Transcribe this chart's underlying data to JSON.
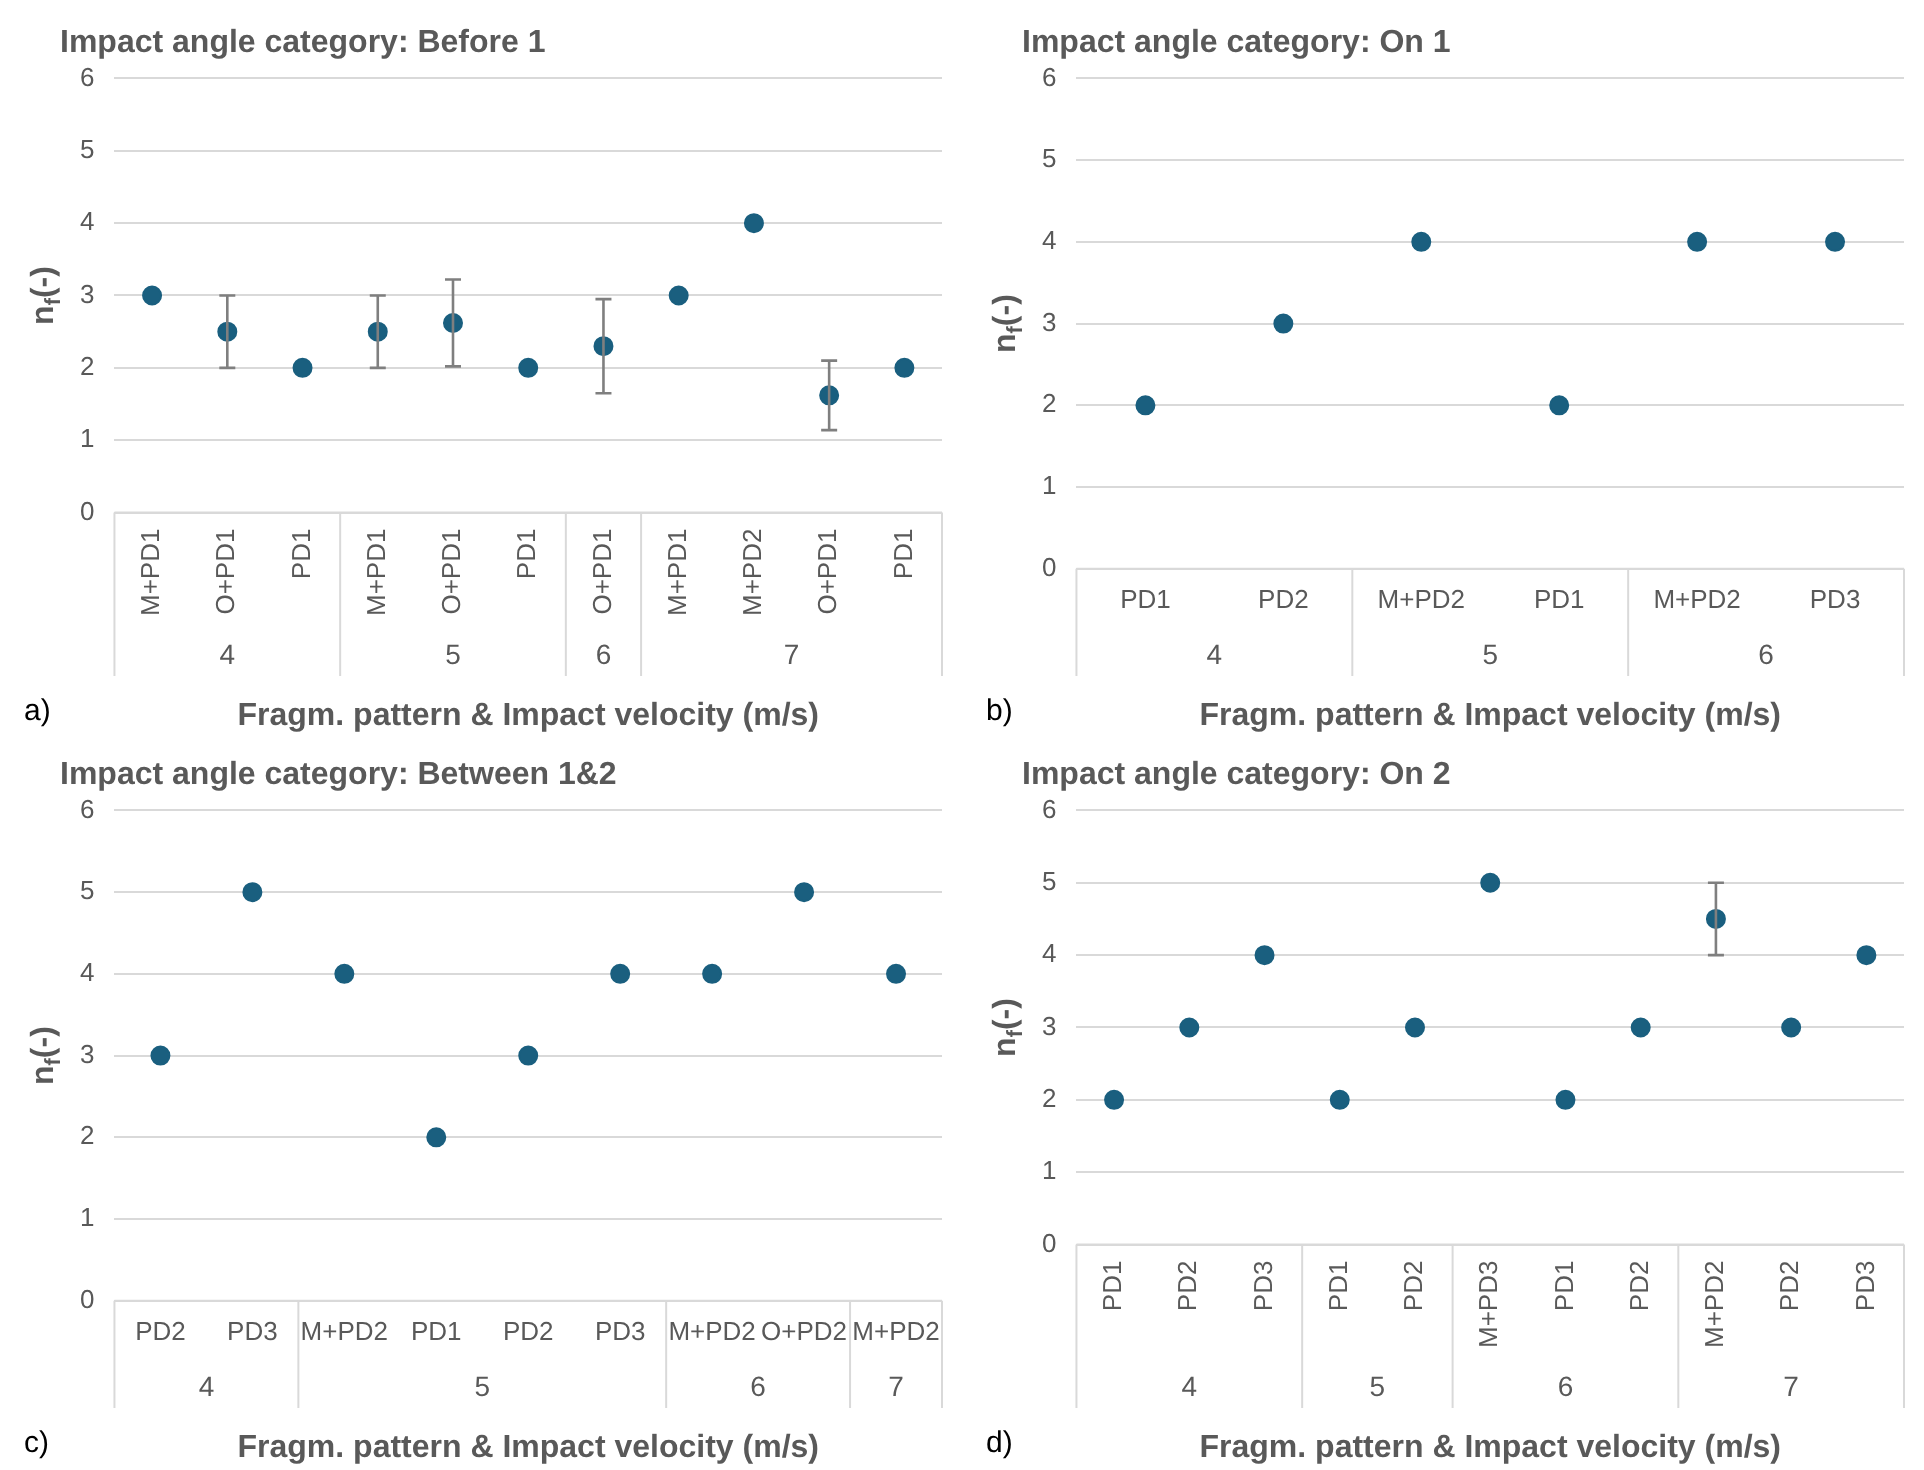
{
  "chart_data": [
    {
      "type": "scatter",
      "title": "Impact angle category: Before 1",
      "xlabel": "Fragm. pattern & Impact velocity (m/s)",
      "ylabel": "n$_{f}$(-)",
      "annotations": [
        "4",
        "5",
        "6",
        "7",
        "a)"
      ],
      "categories": [
        "M+PD1",
        "O+PD1",
        "PD1",
        "M+PD1",
        "O+PD1",
        "PD1",
        "O+PD1",
        "M+PD1",
        "M+PD2",
        "O+PD1",
        "PD1"
      ],
      "series": [
        {
          "color": "#1a5f7f",
          "values": [
            3,
            2.5,
            2,
            null,
            null,
            null,
            null,
            null,
            null,
            null,
            null
          ],
          "errors": [
            null,
            [
              2,
              3
            ],
            null,
            null,
            null,
            null,
            null,
            null,
            null,
            null,
            null
          ]
        },
        {
          "color": "#1a5f7f",
          "values": [
            null,
            null,
            null,
            2.5,
            2.62,
            2,
            null,
            null,
            null,
            null,
            null
          ],
          "errors": [
            null,
            null,
            null,
            [
              2,
              3
            ],
            [
              2.02,
              3.22
            ],
            null,
            null,
            null,
            null,
            null,
            null
          ]
        },
        {
          "color": "#1a5f7f",
          "values": [
            null,
            null,
            null,
            null,
            null,
            null,
            2.3,
            null,
            null,
            null,
            null
          ],
          "errors": [
            null,
            null,
            null,
            null,
            null,
            null,
            [
              1.65,
              2.95
            ],
            null,
            null,
            null,
            null
          ]
        },
        {
          "color": "#1a5f7f",
          "values": [
            null,
            null,
            null,
            null,
            null,
            null,
            null,
            3,
            4,
            1.62,
            2
          ],
          "errors": [
            null,
            null,
            null,
            null,
            null,
            null,
            null,
            null,
            null,
            [
              1.14,
              2.1
            ],
            null
          ]
        }
      ],
      "ylim": [
        0,
        6
      ],
      "yticks": [
        0,
        1,
        2,
        3,
        4,
        5,
        6
      ],
      "grid": "y",
      "marker": "circle"
    },
    {
      "type": "scatter",
      "title": "Impact angle category: On 1",
      "xlabel": "Fragm. pattern & Impact velocity (m/s)",
      "ylabel": "n$_{f}$(-)",
      "annotations": [
        "4",
        "5",
        "6",
        "b)"
      ],
      "categories": [
        "PD1",
        "PD2",
        "M+PD2",
        "PD1",
        "M+PD2",
        "PD3"
      ],
      "series": [
        {
          "color": "#1a5f7f",
          "values": [
            2,
            3,
            null,
            null,
            null,
            null
          ]
        },
        {
          "color": "#1a5f7f",
          "values": [
            null,
            null,
            4,
            2,
            null,
            null
          ]
        },
        {
          "color": "#1a5f7f",
          "values": [
            null,
            null,
            null,
            null,
            4,
            4
          ]
        }
      ],
      "ylim": [
        0,
        6
      ],
      "yticks": [
        0,
        1,
        2,
        3,
        4,
        5,
        6
      ],
      "grid": "y",
      "marker": "circle"
    },
    {
      "type": "scatter",
      "title": "Impact angle category: Between 1&2",
      "xlabel": "Fragm. pattern & Impact velocity (m/s)",
      "ylabel": "n$_{f}$(-)",
      "annotations": [
        "4",
        "5",
        "6",
        "7",
        "c)"
      ],
      "categories": [
        "PD2",
        "PD3",
        "M+PD2",
        "PD1",
        "PD2",
        "PD3",
        "M+PD2",
        "O+PD2",
        "M+PD2"
      ],
      "series": [
        {
          "color": "#1a5f7f",
          "values": [
            3,
            5,
            null,
            null,
            null,
            null,
            null,
            null,
            null
          ]
        },
        {
          "color": "#1a5f7f",
          "values": [
            null,
            null,
            4,
            2,
            3,
            4,
            null,
            null,
            null
          ]
        },
        {
          "color": "#1a5f7f",
          "values": [
            null,
            null,
            null,
            null,
            null,
            null,
            4,
            5,
            null
          ]
        },
        {
          "color": "#1a5f7f",
          "values": [
            null,
            null,
            null,
            null,
            null,
            null,
            null,
            null,
            4
          ]
        }
      ],
      "ylim": [
        0,
        6
      ],
      "yticks": [
        0,
        1,
        2,
        3,
        4,
        5,
        6
      ],
      "grid": "y",
      "marker": "circle"
    },
    {
      "type": "scatter",
      "title": "Impact angle category: On 2",
      "xlabel": "Fragm. pattern & Impact velocity (m/s)",
      "ylabel": "n$_{f}$(-)",
      "annotations": [
        "4",
        "5",
        "6",
        "7",
        "d)"
      ],
      "categories": [
        "PD1",
        "PD2",
        "PD3",
        "PD1",
        "PD2",
        "M+PD3",
        "PD1",
        "PD2",
        "M+PD2",
        "PD2",
        "PD3"
      ],
      "series": [
        {
          "color": "#1a5f7f",
          "values": [
            2,
            3,
            4,
            null,
            null,
            null,
            null,
            null,
            null,
            null,
            null
          ]
        },
        {
          "color": "#1a5f7f",
          "values": [
            null,
            null,
            null,
            2,
            3,
            null,
            null,
            null,
            null,
            null,
            null
          ]
        },
        {
          "color": "#1a5f7f",
          "values": [
            null,
            null,
            null,
            null,
            null,
            5,
            2,
            3,
            null,
            null,
            null
          ]
        },
        {
          "color": "#1a5f7f",
          "values": [
            null,
            null,
            null,
            null,
            null,
            null,
            null,
            null,
            4.5,
            3,
            4
          ],
          "errors": [
            null,
            null,
            null,
            null,
            null,
            null,
            null,
            null,
            [
              4,
              5
            ],
            null,
            null
          ]
        }
      ],
      "ylim": [
        0,
        6
      ],
      "yticks": [
        0,
        1,
        2,
        3,
        4,
        5,
        6
      ],
      "grid": "y",
      "marker": "circle"
    }
  ]
}
